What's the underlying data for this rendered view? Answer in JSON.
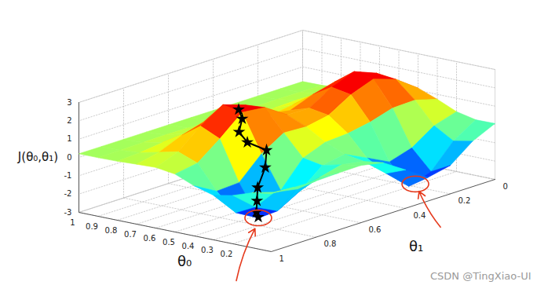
{
  "chart_data": {
    "type": "surface3d",
    "xlabel": "θ₀",
    "ylabel": "θ₁",
    "zlabel": "J(θ₀,θ₁)",
    "x": [
      0,
      0.1,
      0.2,
      0.3,
      0.4,
      0.5,
      0.6,
      0.7,
      0.8,
      0.9,
      1
    ],
    "y": [
      0,
      0.1,
      0.2,
      0.3,
      0.4,
      0.5,
      0.6,
      0.7,
      0.8,
      0.9,
      1
    ],
    "z": [
      [
        0.05,
        -0.52,
        -1.45,
        -1.71,
        -0.9,
        -0.12,
        0.13,
        0.11,
        0.07,
        0.11,
        0.17
      ],
      [
        0.04,
        -0.72,
        -2.0,
        -2.4,
        -1.31,
        -0.26,
        -0.04,
        -0.36,
        -0.59,
        -0.37,
        0.0
      ],
      [
        0.27,
        -0.1,
        -0.92,
        -1.29,
        -0.68,
        -0.09,
        -0.3,
        -1.3,
        -1.99,
        -1.38,
        -0.36
      ],
      [
        0.73,
        1.08,
        1.04,
        0.67,
        0.44,
        0.36,
        -0.11,
        -1.48,
        -2.59,
        -1.91,
        -0.57
      ],
      [
        1.13,
        2.0,
        2.41,
        1.95,
        1.22,
        0.99,
        1.05,
        0.3,
        -0.88,
        -0.95,
        -0.27
      ],
      [
        1.18,
        2.12,
        2.6,
        2.15,
        1.4,
        1.43,
        2.22,
        2.35,
        1.3,
        0.37,
        0.16
      ],
      [
        0.87,
        1.5,
        1.83,
        1.52,
        1.06,
        1.25,
        2.14,
        2.55,
        1.78,
        0.77,
        0.31
      ],
      [
        0.49,
        0.76,
        0.9,
        0.77,
        0.58,
        0.71,
        1.17,
        1.4,
        1.04,
        0.53,
        0.27
      ],
      [
        0.28,
        0.36,
        0.4,
        0.36,
        0.31,
        0.34,
        0.47,
        0.54,
        0.44,
        0.29,
        0.22
      ],
      [
        0.21,
        0.22,
        0.23,
        0.22,
        0.22,
        0.22,
        0.24,
        0.26,
        0.24,
        0.22,
        0.2
      ],
      [
        0.2,
        0.2,
        0.2,
        0.2,
        0.2,
        0.2,
        0.2,
        0.2,
        0.2,
        0.2,
        0.2
      ]
    ],
    "xlim": [
      0,
      1
    ],
    "xticks": [
      0.2,
      0.3,
      0.4,
      0.5,
      0.6,
      0.7,
      0.8,
      0.9,
      1
    ],
    "ylim": [
      0,
      1
    ],
    "yticks": [
      0,
      0.2,
      0.4,
      0.6,
      0.8,
      1
    ],
    "zlim": [
      -3,
      3
    ],
    "zticks": [
      -3,
      -2,
      -1,
      0,
      1,
      2,
      3
    ],
    "grid": true,
    "path": {
      "x": [
        0.53,
        0.5,
        0.47,
        0.45,
        0.42,
        0.38,
        0.35,
        0.33,
        0.31,
        0.3
      ],
      "y": [
        0.69,
        0.7,
        0.74,
        0.72,
        0.66,
        0.7,
        0.76,
        0.78,
        0.8,
        0.8
      ],
      "z": [
        2.4,
        2.0,
        1.5,
        0.9,
        0.3,
        -0.4,
        -1.2,
        -1.8,
        -2.3,
        -2.55
      ],
      "color": "#000000",
      "marker": "star"
    },
    "highlights": {
      "x": [
        0.3,
        0.1
      ],
      "y": [
        0.8,
        0.27
      ],
      "z": [
        -2.59,
        -2.4
      ],
      "color": "#e53a1d"
    },
    "annotation": "CSDN @TingXiao-UI"
  }
}
